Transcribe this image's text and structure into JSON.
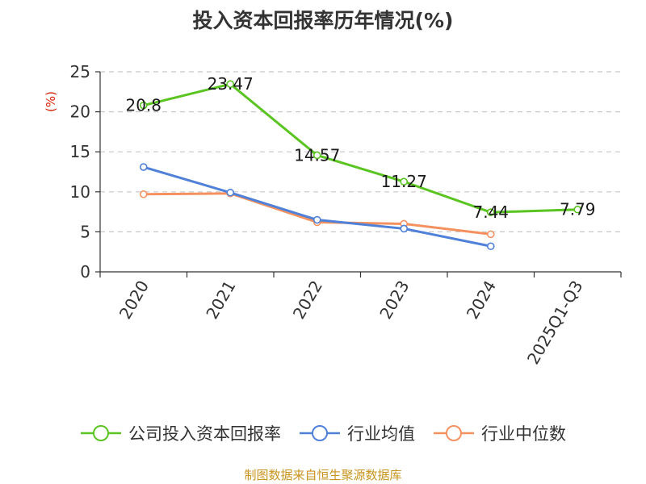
{
  "chart_data": {
    "type": "line",
    "title": "投入资本回报率历年情况(%)",
    "ylabel": "(%)",
    "xlabel": "",
    "categories": [
      "2020",
      "2021",
      "2022",
      "2023",
      "2024",
      "2025Q1-Q3"
    ],
    "ylim": [
      0,
      25
    ],
    "yticks": [
      0,
      5,
      10,
      15,
      20,
      25
    ],
    "grid": true,
    "legend_position": "bottom",
    "series": [
      {
        "name": "公司投入资本回报率",
        "color": "#5ac421",
        "values": [
          20.8,
          23.47,
          14.57,
          11.27,
          7.44,
          7.79
        ],
        "labels": [
          "20.8",
          "23.47",
          "14.57",
          "11.27",
          "7.44",
          "7.79"
        ]
      },
      {
        "name": "行业均值",
        "color": "#4f81d9",
        "values": [
          13.1,
          9.9,
          6.5,
          5.4,
          3.2,
          null
        ]
      },
      {
        "name": "行业中位数",
        "color": "#f5915e",
        "values": [
          9.7,
          9.8,
          6.2,
          6.0,
          4.7,
          null
        ]
      }
    ]
  },
  "source_note": "制图数据来自恒生聚源数据库"
}
